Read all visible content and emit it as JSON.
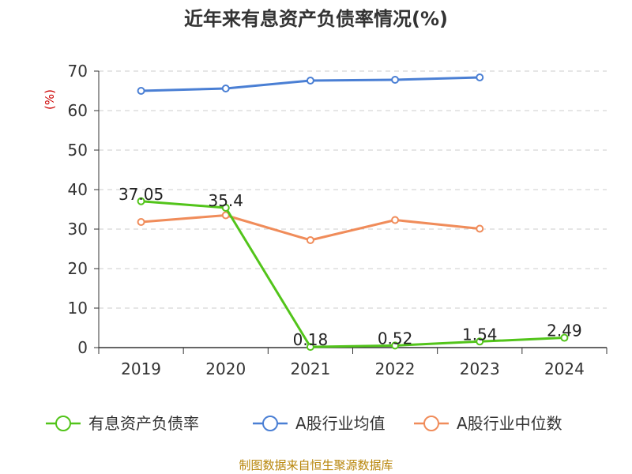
{
  "chart_data": {
    "type": "line",
    "title": "近年来有息资产负债率情况(%)",
    "ylabel": "(%)",
    "xlabel": "",
    "ylim": [
      0,
      70
    ],
    "yticks": [
      0,
      10,
      20,
      30,
      40,
      50,
      60,
      70
    ],
    "grid": true,
    "legend_position": "bottom",
    "categories": [
      "2019",
      "2020",
      "2021",
      "2022",
      "2023",
      "2024"
    ],
    "series": [
      {
        "name": "有息资产负债率",
        "color": "#52c41a",
        "values": [
          37.05,
          35.4,
          0.18,
          0.52,
          1.54,
          2.49
        ],
        "labels": [
          "37.05",
          "35.4",
          "0.18",
          "0.52",
          "1.54",
          "2.49"
        ]
      },
      {
        "name": "A股行业均值",
        "color": "#4a7fd4",
        "values": [
          65.0,
          65.6,
          67.6,
          67.8,
          68.4,
          null
        ]
      },
      {
        "name": "A股行业中位数",
        "color": "#f08c5a",
        "values": [
          31.8,
          33.5,
          27.2,
          32.3,
          30.1,
          null
        ]
      }
    ]
  },
  "source": "制图数据来自恒生聚源数据库"
}
